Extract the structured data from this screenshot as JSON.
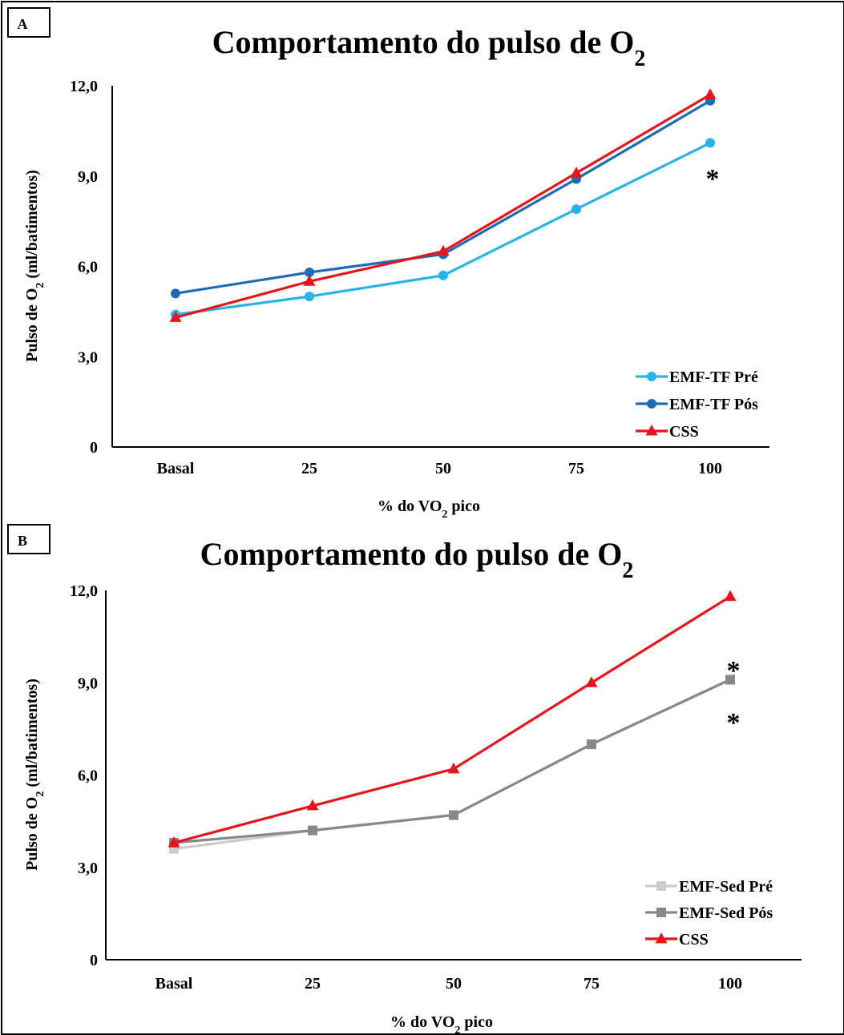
{
  "chart_data": [
    {
      "type": "line",
      "panel_label": "A",
      "title": "Comportamento do pulso de O",
      "title_subscript": "2",
      "categories": [
        "Basal",
        "25",
        "50",
        "75",
        "100"
      ],
      "ylabel": "Pulso de O",
      "ylabel_subscript": "2",
      "ylabel_suffix": " (ml/batimentos)",
      "xlabel": "% do VO",
      "xlabel_subscript": "2",
      "xlabel_suffix": " pico",
      "yticks": [
        "0",
        "3,0",
        "6,0",
        "9,0",
        "12,0"
      ],
      "ytick_values": [
        0,
        3,
        6,
        9,
        12
      ],
      "ylim": [
        0,
        12
      ],
      "grid": false,
      "legend_position": "bottom-right",
      "annotations": [
        {
          "text": "*",
          "category": "100",
          "near_series": "EMF-TF Pré"
        }
      ],
      "series": [
        {
          "name": "EMF-TF Pré",
          "color": "#27b3e8",
          "marker": "circle",
          "values": [
            4.4,
            5.0,
            5.7,
            7.9,
            10.1
          ]
        },
        {
          "name": "EMF-TF Pós",
          "color": "#1e6bb5",
          "marker": "circle",
          "values": [
            5.1,
            5.8,
            6.4,
            8.9,
            11.5
          ]
        },
        {
          "name": "CSS",
          "color": "#e8141c",
          "marker": "triangle",
          "values": [
            4.3,
            5.5,
            6.5,
            9.1,
            11.7
          ]
        }
      ]
    },
    {
      "type": "line",
      "panel_label": "B",
      "title": "Comportamento do pulso de O",
      "title_subscript": "2",
      "categories": [
        "Basal",
        "25",
        "50",
        "75",
        "100"
      ],
      "ylabel": "Pulso de O",
      "ylabel_subscript": "2",
      "ylabel_suffix": " (ml/batimentos)",
      "xlabel": "% do VO",
      "xlabel_subscript": "2",
      "xlabel_suffix": " pico",
      "yticks": [
        "0",
        "3,0",
        "6,0",
        "9,0",
        "12,0"
      ],
      "ytick_values": [
        0,
        3,
        6,
        9,
        12
      ],
      "ylim": [
        0,
        12
      ],
      "grid": false,
      "legend_position": "bottom-right",
      "annotations": [
        {
          "text": "*",
          "category": "100",
          "position": "above"
        },
        {
          "text": "*",
          "category": "100",
          "position": "below"
        }
      ],
      "series": [
        {
          "name": "EMF-Sed Pré",
          "color": "#cccccc",
          "marker": "square",
          "values": [
            3.6,
            4.2,
            4.7,
            7.0,
            9.1
          ]
        },
        {
          "name": "EMF-Sed Pós",
          "color": "#888888",
          "marker": "square",
          "values": [
            3.8,
            4.2,
            4.7,
            7.0,
            9.1
          ]
        },
        {
          "name": "CSS",
          "color": "#e8141c",
          "marker": "triangle",
          "values": [
            3.8,
            5.0,
            6.2,
            9.0,
            11.8
          ]
        }
      ]
    }
  ]
}
